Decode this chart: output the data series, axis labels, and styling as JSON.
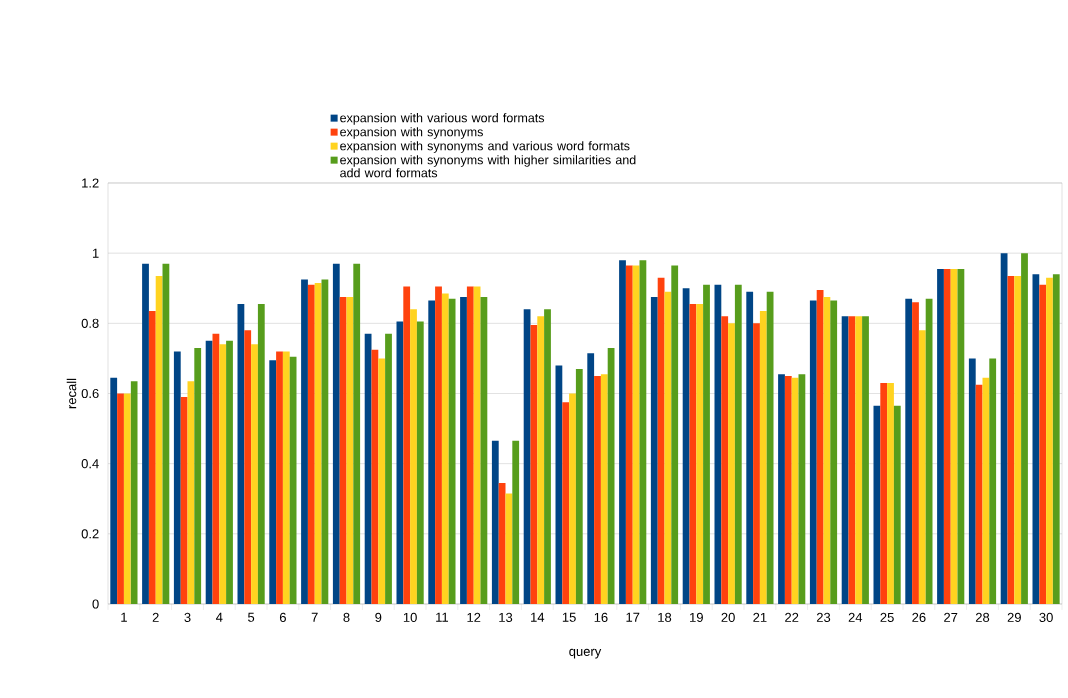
{
  "chart_data": {
    "type": "bar",
    "xlabel": "query",
    "ylabel": "recall",
    "categories": [
      "1",
      "2",
      "3",
      "4",
      "5",
      "6",
      "7",
      "8",
      "9",
      "10",
      "11",
      "12",
      "13",
      "14",
      "15",
      "16",
      "17",
      "18",
      "19",
      "20",
      "21",
      "22",
      "23",
      "24",
      "25",
      "26",
      "27",
      "28",
      "29",
      "30"
    ],
    "series": [
      {
        "name": "expansion with various word formats",
        "color": "#004586",
        "values": [
          0.645,
          0.97,
          0.72,
          0.75,
          0.855,
          0.695,
          0.925,
          0.97,
          0.77,
          0.805,
          0.865,
          0.875,
          0.465,
          0.84,
          0.68,
          0.715,
          0.98,
          0.875,
          0.9,
          0.91,
          0.89,
          0.655,
          0.865,
          0.82,
          0.565,
          0.87,
          0.955,
          0.7,
          1.0,
          0.94
        ]
      },
      {
        "name": "expansion with synonyms",
        "color": "#ff420e",
        "values": [
          0.6,
          0.835,
          0.59,
          0.77,
          0.78,
          0.72,
          0.91,
          0.875,
          0.725,
          0.905,
          0.905,
          0.905,
          0.345,
          0.795,
          0.575,
          0.65,
          0.965,
          0.93,
          0.855,
          0.82,
          0.8,
          0.65,
          0.895,
          0.82,
          0.63,
          0.86,
          0.955,
          0.625,
          0.935,
          0.91
        ]
      },
      {
        "name": "expansion with synonyms and various word formats",
        "color": "#ffd320",
        "values": [
          0.6,
          0.935,
          0.635,
          0.74,
          0.74,
          0.72,
          0.915,
          0.875,
          0.7,
          0.84,
          0.885,
          0.905,
          0.315,
          0.82,
          0.6,
          0.655,
          0.965,
          0.89,
          0.855,
          0.8,
          0.835,
          0.645,
          0.875,
          0.82,
          0.63,
          0.78,
          0.955,
          0.645,
          0.935,
          0.93
        ]
      },
      {
        "name": "expansion with synonyms with higher similarities and add word formats",
        "color": "#579d1c",
        "values": [
          0.635,
          0.97,
          0.73,
          0.75,
          0.855,
          0.705,
          0.925,
          0.97,
          0.77,
          0.805,
          0.87,
          0.875,
          0.465,
          0.84,
          0.67,
          0.73,
          0.98,
          0.965,
          0.91,
          0.91,
          0.89,
          0.655,
          0.865,
          0.82,
          0.565,
          0.87,
          0.955,
          0.7,
          1.0,
          0.94
        ]
      }
    ],
    "ylim": [
      0,
      1.2
    ],
    "yticks": [
      0,
      0.2,
      0.4,
      0.6,
      0.8,
      1,
      1.2
    ],
    "grid": "y",
    "legend": "top"
  }
}
